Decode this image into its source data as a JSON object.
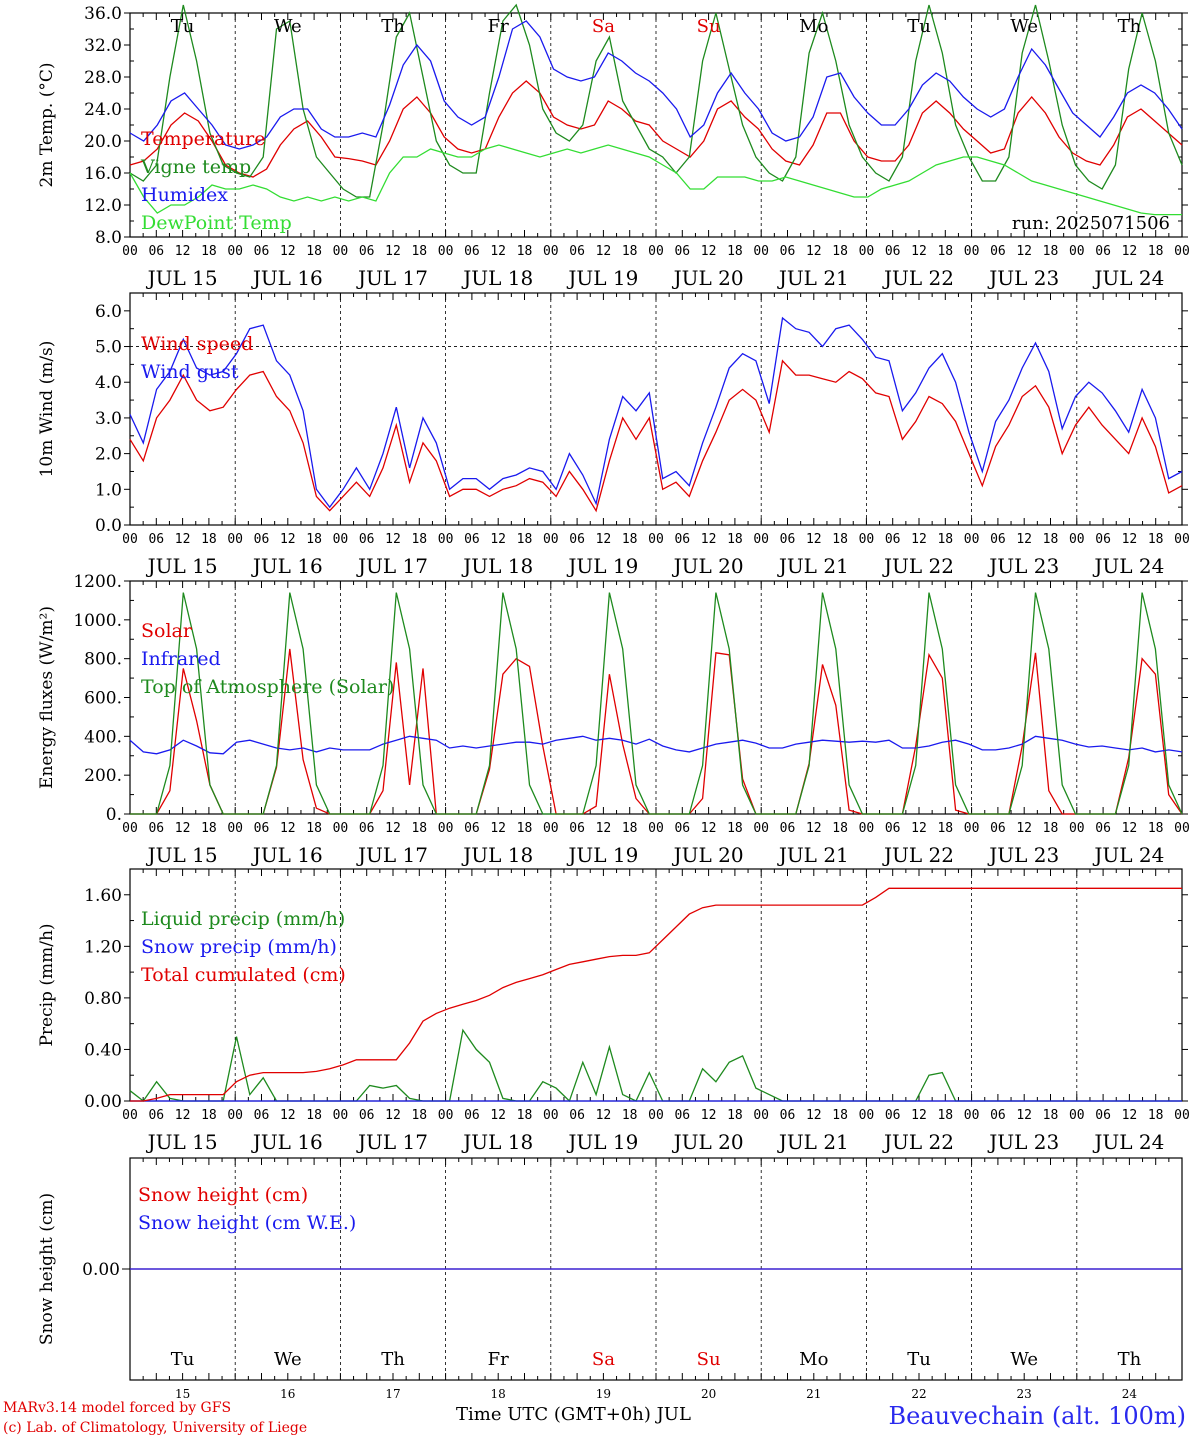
{
  "footer": {
    "model": "MARv3.14 model forced by GFS",
    "lab": "(c) Lab. of Climatology, University of Liege",
    "axis_title": "Time UTC (GMT+0h) JUL",
    "station": "Beauvechain (alt. 100m)"
  },
  "time_axis": {
    "hour_ticks": [
      "00",
      "06",
      "12",
      "18"
    ],
    "final_tick": "00",
    "dates": [
      "JUL 15",
      "JUL 16",
      "JUL 17",
      "JUL 18",
      "JUL 19",
      "JUL 20",
      "JUL 21",
      "JUL 22",
      "JUL 23",
      "JUL 24"
    ],
    "day_names": [
      "Tu",
      "We",
      "Th",
      "Fr",
      "Sa",
      "Su",
      "Mo",
      "Tu",
      "We",
      "Th"
    ],
    "day_numbers": [
      "15",
      "16",
      "17",
      "18",
      "19",
      "20",
      "21",
      "22",
      "23",
      "24"
    ],
    "weekend_color": "#e00000",
    "weekend_index": [
      4,
      5
    ]
  },
  "colors": {
    "red": "#e00000",
    "green": "#1e8a1e",
    "blue": "#1a1aee",
    "lightgreen": "#33dd33"
  },
  "chart_data": [
    {
      "type": "line",
      "ylabel": "2m Temp. (°C)",
      "ylim": [
        8,
        36
      ],
      "yticks": [
        "8.0",
        "12.0",
        "16.0",
        "20.0",
        "24.0",
        "28.0",
        "32.0",
        "36.0"
      ],
      "annotation": "run: 2025071506",
      "series": [
        {
          "name": "Temperature",
          "color": "red",
          "values": [
            17,
            17.5,
            19,
            22,
            23.5,
            22.5,
            20,
            17,
            16,
            15.5,
            16.5,
            19.5,
            21.5,
            22.5,
            20.5,
            18,
            17.8,
            17.5,
            17,
            20,
            24,
            25.5,
            23.5,
            20.5,
            19,
            18.5,
            19,
            23,
            26,
            27.5,
            26,
            23,
            22,
            21.5,
            22,
            25,
            24,
            22.5,
            22,
            20,
            19,
            18,
            20,
            24,
            25,
            23,
            21.5,
            19,
            17.5,
            17,
            19.5,
            23.5,
            23.5,
            20,
            18,
            17.5,
            17.5,
            19.5,
            23.5,
            25,
            23.5,
            21.5,
            20,
            18.5,
            19,
            23.5,
            25.5,
            23.5,
            20.5,
            18.5,
            17.5,
            17,
            19.5,
            23,
            24,
            22.5,
            21,
            19.5
          ]
        },
        {
          "name": "Vigne temp",
          "color": "green",
          "values": [
            16,
            15,
            17,
            28,
            37,
            30,
            21,
            17,
            16,
            15.5,
            18,
            34,
            35,
            24,
            18,
            16,
            14,
            13,
            13,
            22,
            33,
            36,
            28,
            20,
            17,
            16,
            16,
            26,
            35,
            37,
            32,
            24,
            21,
            20,
            22,
            30,
            33,
            25,
            22,
            19,
            18,
            16,
            18,
            30,
            36,
            29,
            22,
            18,
            16,
            15,
            18,
            31,
            36,
            30,
            22,
            18,
            16,
            15,
            18,
            30,
            37,
            31,
            22,
            18,
            15,
            15,
            18,
            31,
            37,
            30,
            22,
            17,
            15,
            14,
            17,
            29,
            36,
            30,
            21,
            17
          ]
        },
        {
          "name": "Humidex",
          "color": "blue",
          "values": [
            21,
            20,
            22,
            25,
            26,
            24,
            22,
            19.5,
            19,
            19.5,
            20.5,
            23,
            24,
            24,
            21.5,
            20.5,
            20.5,
            21,
            20.5,
            24.5,
            29.5,
            32,
            30,
            25,
            23,
            22,
            23,
            28,
            34,
            35,
            33,
            29,
            28,
            27.5,
            28,
            31,
            30,
            28.5,
            27.5,
            26,
            24,
            20.5,
            22,
            26,
            28.5,
            26,
            24,
            21,
            20,
            20.5,
            23,
            28,
            28.5,
            25.5,
            23.5,
            22,
            22,
            24,
            27,
            28.5,
            27.5,
            25.5,
            24,
            23,
            24,
            28,
            31.5,
            29.5,
            26.5,
            23.5,
            22,
            20.5,
            23,
            26,
            27,
            26,
            24,
            21.5
          ]
        },
        {
          "name": "DewPoint Temp",
          "color": "lightgreen",
          "values": [
            16,
            13,
            11,
            12,
            12,
            13,
            14.5,
            14,
            14,
            14.5,
            14,
            13,
            12.5,
            13,
            12.5,
            13,
            12.5,
            13,
            12.5,
            16,
            18,
            18,
            19,
            18.5,
            18,
            18,
            19,
            19.5,
            19,
            18.5,
            18,
            18.5,
            19,
            18.5,
            19,
            19.5,
            19,
            18.5,
            18,
            17,
            16,
            14,
            14,
            15.5,
            15.5,
            15.5,
            15,
            15,
            15.5,
            15,
            14.5,
            14,
            13.5,
            13,
            13,
            14,
            14.5,
            15,
            16,
            17,
            17.5,
            18,
            18,
            17.5,
            17,
            16,
            15,
            14.5,
            14,
            13.5,
            13,
            12.5,
            12,
            11.5,
            11,
            10.8,
            10.8,
            10.8
          ]
        }
      ]
    },
    {
      "type": "line",
      "ylabel": "10m Wind (m/s)",
      "ylim": [
        0,
        6.5
      ],
      "yticks": [
        "0.0",
        "1.0",
        "2.0",
        "3.0",
        "4.0",
        "5.0",
        "6.0"
      ],
      "reference_line": 5.0,
      "series": [
        {
          "name": "Wind speed",
          "color": "red",
          "values": [
            2.4,
            1.8,
            3,
            3.5,
            4.2,
            3.5,
            3.2,
            3.3,
            3.8,
            4.2,
            4.3,
            3.6,
            3.2,
            2.3,
            0.8,
            0.4,
            0.8,
            1.2,
            0.8,
            1.6,
            2.8,
            1.2,
            2.3,
            1.8,
            0.8,
            1,
            1,
            0.8,
            1,
            1.1,
            1.3,
            1.2,
            0.8,
            1.5,
            1,
            0.4,
            1.8,
            3,
            2.4,
            3,
            1,
            1.2,
            0.8,
            1.8,
            2.6,
            3.5,
            3.8,
            3.5,
            2.6,
            4.6,
            4.2,
            4.2,
            4.1,
            4,
            4.3,
            4.1,
            3.7,
            3.6,
            2.4,
            2.9,
            3.6,
            3.4,
            2.9,
            2,
            1.1,
            2.2,
            2.8,
            3.6,
            3.9,
            3.3,
            2,
            2.8,
            3.3,
            2.8,
            2.4,
            2,
            3,
            2.2,
            0.9,
            1.1
          ]
        },
        {
          "name": "Wind gust",
          "color": "blue",
          "values": [
            3.1,
            2.3,
            3.8,
            4.3,
            5.2,
            4.4,
            4.2,
            4.3,
            4.8,
            5.5,
            5.6,
            4.6,
            4.2,
            3.2,
            1,
            0.5,
            1,
            1.6,
            1,
            2,
            3.3,
            1.6,
            3,
            2.3,
            1,
            1.3,
            1.3,
            1,
            1.3,
            1.4,
            1.6,
            1.5,
            1,
            2,
            1.4,
            0.6,
            2.4,
            3.6,
            3.2,
            3.7,
            1.3,
            1.5,
            1.1,
            2.3,
            3.3,
            4.4,
            4.8,
            4.6,
            3.4,
            5.8,
            5.5,
            5.4,
            5,
            5.5,
            5.6,
            5.2,
            4.7,
            4.6,
            3.2,
            3.7,
            4.4,
            4.8,
            4,
            2.6,
            1.5,
            2.9,
            3.5,
            4.4,
            5.1,
            4.3,
            2.7,
            3.6,
            4,
            3.7,
            3.2,
            2.6,
            3.8,
            3,
            1.3,
            1.5
          ]
        }
      ]
    },
    {
      "type": "line",
      "ylabel": "Energy fluxes (W/m²)",
      "ylim": [
        0,
        1200
      ],
      "yticks": [
        "0.",
        "200.",
        "400.",
        "600.",
        "800.",
        "1000.",
        "1200."
      ],
      "series": [
        {
          "name": "Solar",
          "color": "red",
          "values": [
            0,
            0,
            0,
            120,
            750,
            480,
            150,
            0,
            0,
            0,
            0,
            240,
            850,
            280,
            30,
            0,
            0,
            0,
            0,
            120,
            780,
            150,
            750,
            0,
            0,
            0,
            0,
            230,
            720,
            800,
            760,
            350,
            0,
            0,
            0,
            40,
            720,
            360,
            80,
            0,
            0,
            0,
            0,
            80,
            830,
            820,
            180,
            0,
            0,
            0,
            0,
            260,
            770,
            560,
            20,
            0,
            0,
            0,
            0,
            350,
            820,
            700,
            20,
            0,
            0,
            0,
            0,
            350,
            830,
            120,
            0,
            0,
            0,
            0,
            0,
            290,
            800,
            720,
            100,
            0
          ]
        },
        {
          "name": "Infrared",
          "color": "blue",
          "values": [
            380,
            320,
            310,
            330,
            380,
            350,
            315,
            310,
            370,
            380,
            360,
            340,
            330,
            340,
            320,
            340,
            330,
            330,
            330,
            360,
            380,
            400,
            390,
            380,
            340,
            350,
            340,
            350,
            360,
            370,
            370,
            360,
            380,
            390,
            400,
            380,
            390,
            380,
            360,
            385,
            350,
            330,
            320,
            340,
            360,
            370,
            380,
            365,
            340,
            340,
            360,
            370,
            380,
            375,
            370,
            375,
            370,
            380,
            340,
            340,
            350,
            370,
            380,
            360,
            330,
            330,
            340,
            360,
            400,
            390,
            380,
            360,
            345,
            350,
            340,
            330,
            340,
            320,
            330,
            320
          ]
        },
        {
          "name": "Top of Atmosphere (Solar)",
          "color": "green",
          "values": [
            0,
            0,
            0,
            250,
            1140,
            850,
            150,
            0,
            0,
            0,
            0,
            250,
            1140,
            850,
            150,
            0,
            0,
            0,
            0,
            250,
            1140,
            850,
            150,
            0,
            0,
            0,
            0,
            250,
            1140,
            850,
            150,
            0,
            0,
            0,
            0,
            250,
            1140,
            850,
            150,
            0,
            0,
            0,
            0,
            250,
            1140,
            850,
            150,
            0,
            0,
            0,
            0,
            250,
            1140,
            850,
            150,
            0,
            0,
            0,
            0,
            250,
            1140,
            850,
            150,
            0,
            0,
            0,
            0,
            250,
            1140,
            850,
            150,
            0,
            0,
            0,
            0,
            250,
            1140,
            850,
            150,
            0
          ]
        }
      ]
    },
    {
      "type": "line",
      "ylabel": "Precip (mm/h)",
      "ylim": [
        0,
        1.8
      ],
      "yticks": [
        "0.00",
        "0.40",
        "0.80",
        "1.20",
        "1.60"
      ],
      "series": [
        {
          "name": "Liquid precip (mm/h)",
          "color": "green",
          "values": [
            0.08,
            0,
            0.15,
            0.02,
            0,
            0,
            0,
            0,
            0.5,
            0.05,
            0.18,
            0,
            0,
            0,
            0,
            0,
            0,
            0,
            0.12,
            0.1,
            0.12,
            0.02,
            0,
            0,
            0,
            0.55,
            0.4,
            0.3,
            0.02,
            0,
            0,
            0.15,
            0.1,
            0,
            0.3,
            0.05,
            0.42,
            0.05,
            0,
            0.22,
            0,
            0,
            0,
            0.25,
            0.15,
            0.3,
            0.35,
            0.1,
            0.05,
            0,
            0,
            0,
            0,
            0,
            0,
            0,
            0,
            0,
            0,
            0,
            0.2,
            0.22,
            0,
            0,
            0,
            0,
            0,
            0,
            0,
            0,
            0,
            0,
            0,
            0,
            0,
            0,
            0,
            0,
            0,
            0
          ]
        },
        {
          "name": "Snow precip (mm/h)",
          "color": "blue",
          "values": [
            0,
            0,
            0,
            0,
            0,
            0,
            0,
            0,
            0,
            0,
            0,
            0,
            0,
            0,
            0,
            0,
            0,
            0,
            0,
            0,
            0,
            0,
            0,
            0,
            0,
            0,
            0,
            0,
            0,
            0,
            0,
            0,
            0,
            0,
            0,
            0,
            0,
            0,
            0,
            0,
            0,
            0,
            0,
            0,
            0,
            0,
            0,
            0,
            0,
            0,
            0,
            0,
            0,
            0,
            0,
            0,
            0,
            0,
            0,
            0,
            0,
            0,
            0,
            0,
            0,
            0,
            0,
            0,
            0,
            0,
            0,
            0,
            0,
            0,
            0,
            0,
            0,
            0,
            0,
            0
          ]
        },
        {
          "name": "Total cumulated (cm)",
          "color": "red",
          "values": [
            0,
            0,
            0.02,
            0.05,
            0.05,
            0.05,
            0.05,
            0.05,
            0.15,
            0.2,
            0.22,
            0.22,
            0.22,
            0.22,
            0.23,
            0.25,
            0.28,
            0.32,
            0.32,
            0.32,
            0.32,
            0.45,
            0.62,
            0.68,
            0.72,
            0.75,
            0.78,
            0.82,
            0.88,
            0.92,
            0.95,
            0.98,
            1.02,
            1.06,
            1.08,
            1.1,
            1.12,
            1.13,
            1.13,
            1.15,
            1.25,
            1.35,
            1.45,
            1.5,
            1.52,
            1.52,
            1.52,
            1.52,
            1.52,
            1.52,
            1.52,
            1.52,
            1.52,
            1.52,
            1.52,
            1.52,
            1.58,
            1.65,
            1.65,
            1.65,
            1.65,
            1.65,
            1.65,
            1.65,
            1.65,
            1.65,
            1.65,
            1.65,
            1.65,
            1.65,
            1.65,
            1.65,
            1.65,
            1.65,
            1.65,
            1.65,
            1.65,
            1.65,
            1.65,
            1.65
          ]
        }
      ]
    },
    {
      "type": "line",
      "ylabel": "Snow height (cm)",
      "ylim": [
        -1,
        1
      ],
      "yticks": [
        "0.00"
      ],
      "series": [
        {
          "name": "Snow height (cm)",
          "color": "red",
          "values": [
            0,
            0
          ]
        },
        {
          "name": "Snow height (cm W.E.)",
          "color": "blue",
          "values": [
            0,
            0
          ]
        }
      ]
    }
  ]
}
